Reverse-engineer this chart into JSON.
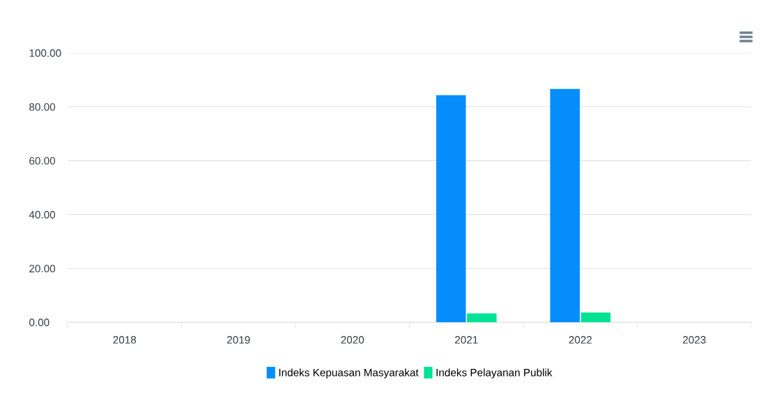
{
  "chart_data": {
    "type": "bar",
    "categories": [
      "2018",
      "2019",
      "2020",
      "2021",
      "2022",
      "2023"
    ],
    "series": [
      {
        "name": "Indeks Kepuasan Masyarakat",
        "color": "#058dfc",
        "values": [
          0,
          0,
          0,
          84.3,
          86.6,
          0
        ]
      },
      {
        "name": "Indeks Pelayanan Publik",
        "color": "#02e396",
        "values": [
          0,
          0,
          0,
          3.3,
          3.6,
          0
        ]
      }
    ],
    "ylim": [
      0,
      100
    ],
    "yticks": [
      {
        "value": 0,
        "label": "0.00"
      },
      {
        "value": 20,
        "label": "20.00"
      },
      {
        "value": 40,
        "label": "40.00"
      },
      {
        "value": 60,
        "label": "60.00"
      },
      {
        "value": 80,
        "label": "80.00"
      },
      {
        "value": 100,
        "label": "100.00"
      }
    ],
    "grid": "y",
    "legend": "bottom"
  }
}
